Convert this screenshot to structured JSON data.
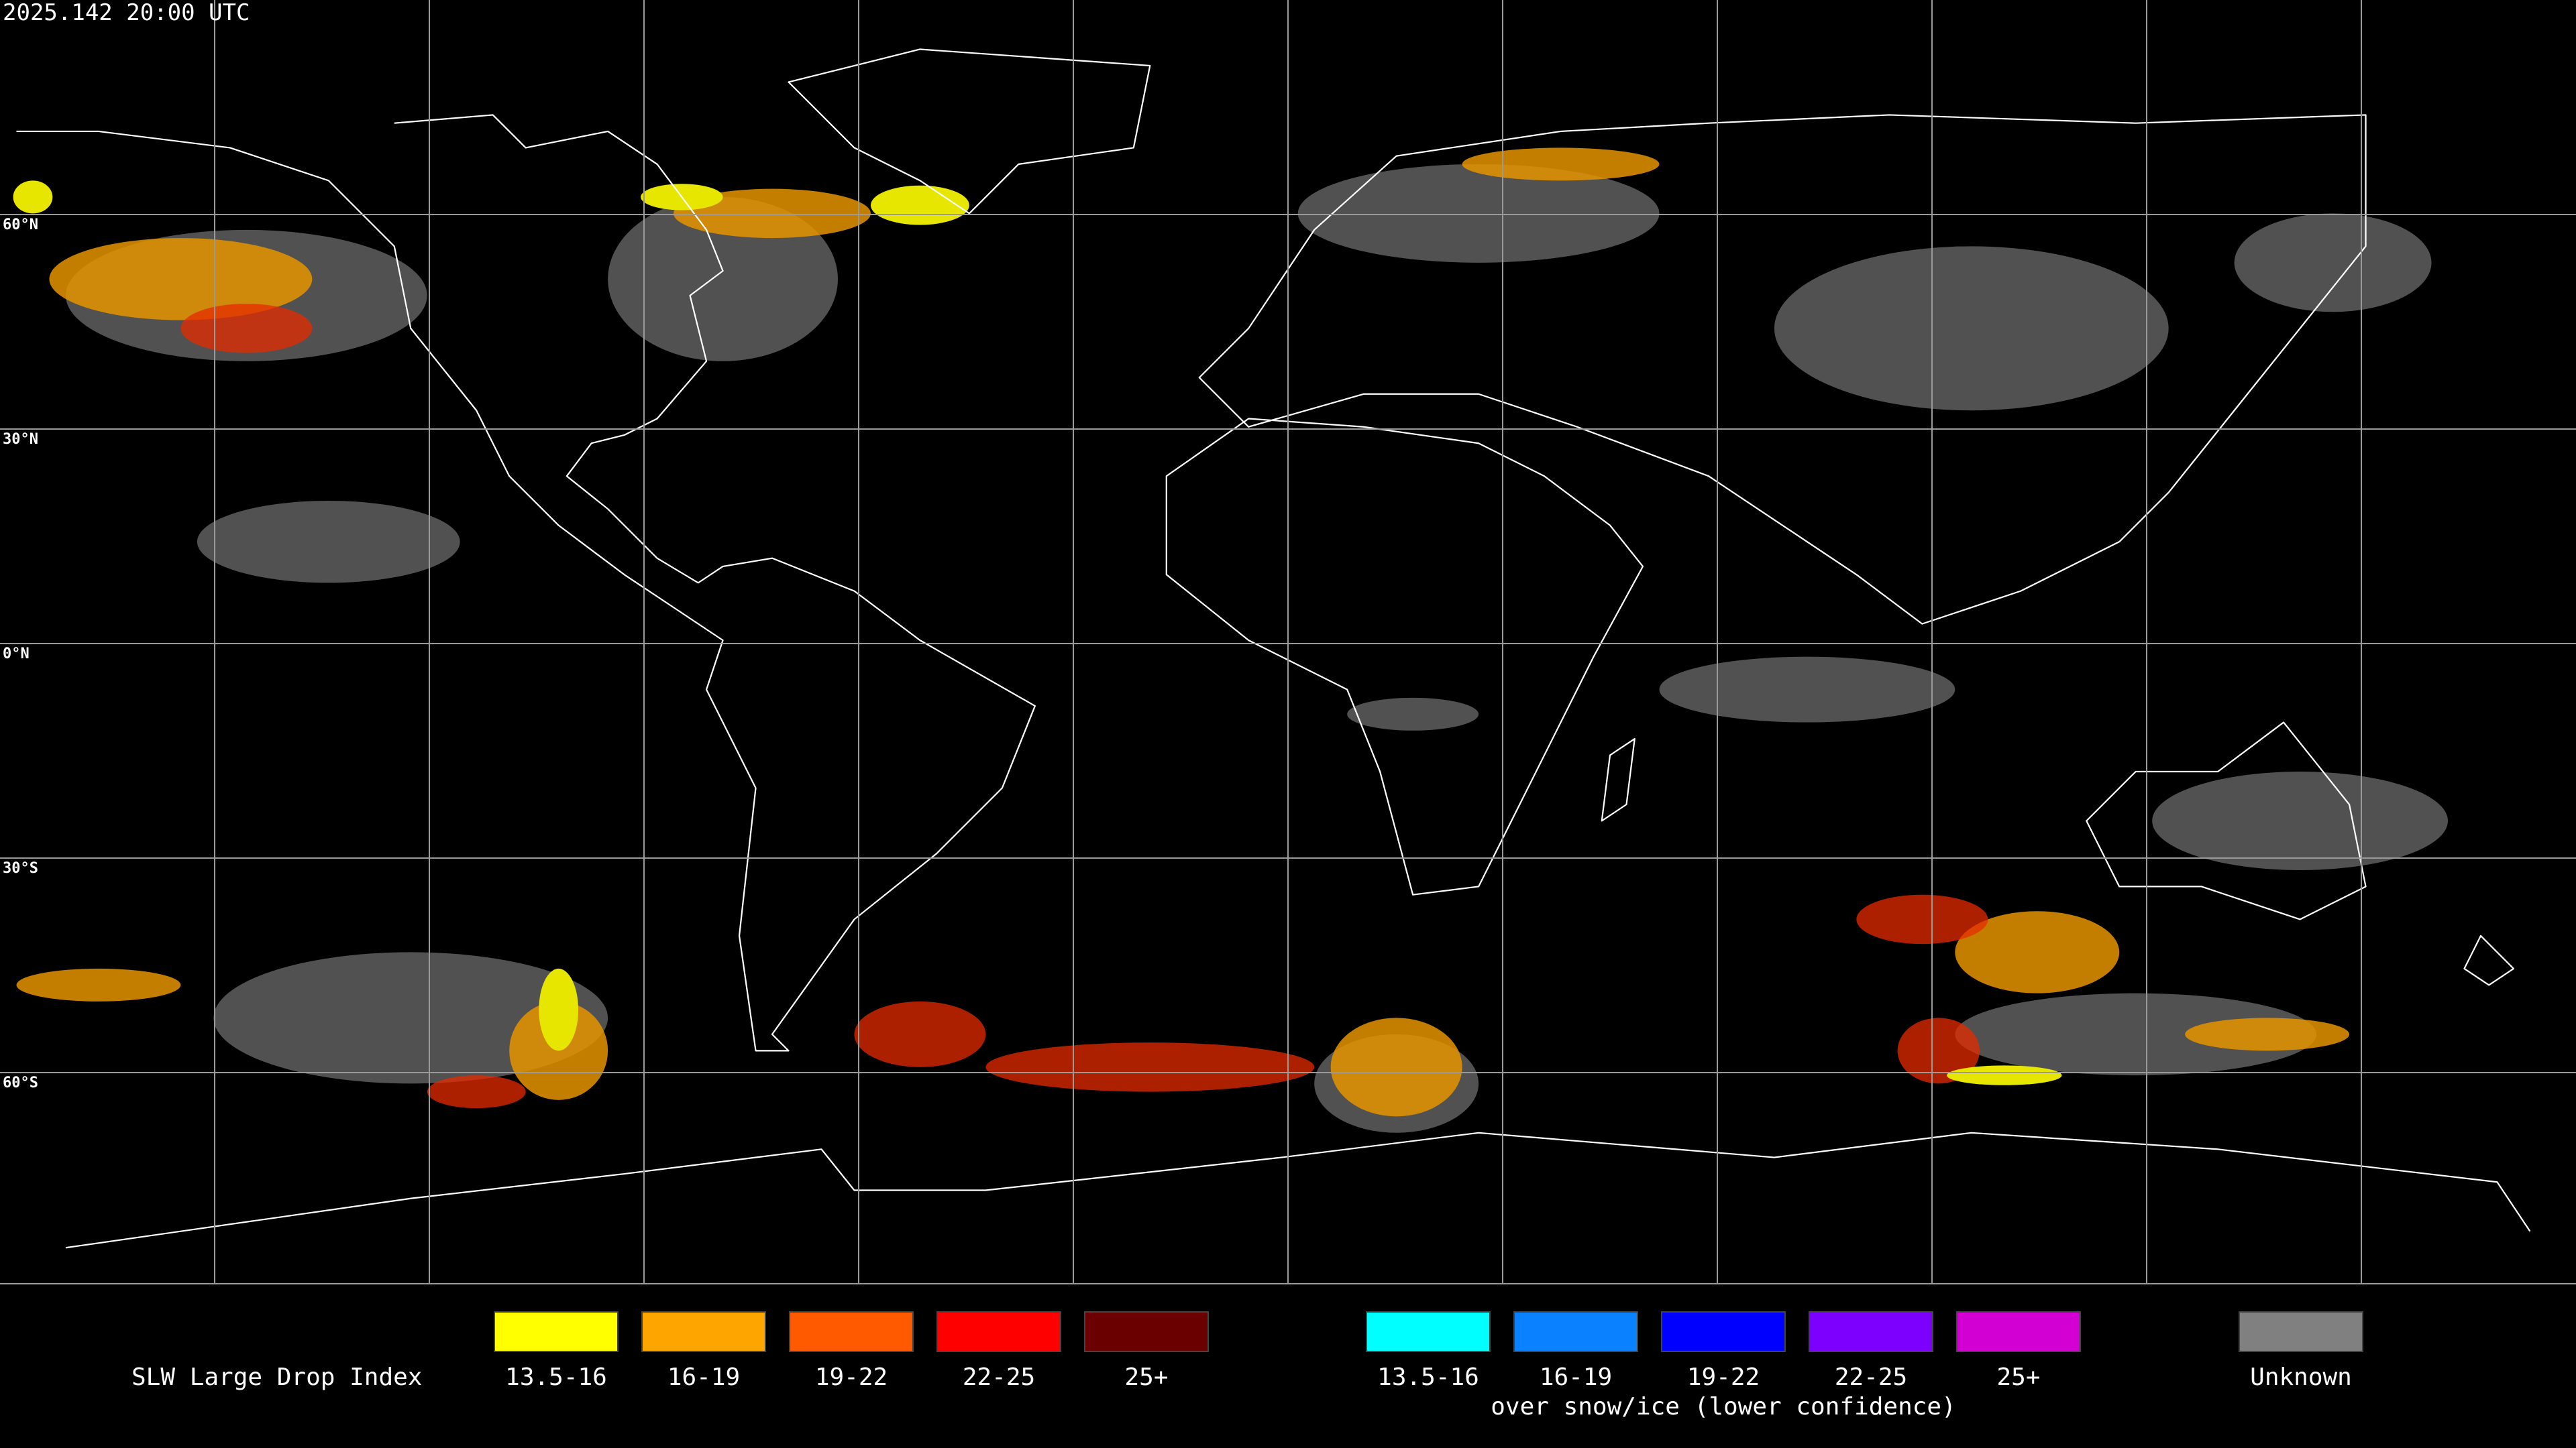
{
  "header": {
    "timestamp": "2025.142 20:00 UTC"
  },
  "lat_labels": [
    "60°N",
    "30°N",
    "0°N",
    "30°S",
    "60°S"
  ],
  "legend": {
    "title": "SLW Large Drop Index",
    "items": [
      {
        "label": "13.5-16",
        "color": "#ffff00"
      },
      {
        "label": "16-19",
        "color": "#ffa500"
      },
      {
        "label": "19-22",
        "color": "#ff5a00"
      },
      {
        "label": "22-25",
        "color": "#ff0000"
      },
      {
        "label": "25+",
        "color": "#6b0000"
      }
    ],
    "snow_items": [
      {
        "label": "13.5-16",
        "color": "#00ffff"
      },
      {
        "label": "16-19",
        "color": "#0a82ff"
      },
      {
        "label": "19-22",
        "color": "#0000ff"
      },
      {
        "label": "22-25",
        "color": "#7d00ff"
      },
      {
        "label": "25+",
        "color": "#d200d2"
      }
    ],
    "snow_caption": "over snow/ice (lower confidence)",
    "unknown": {
      "label": "Unknown",
      "color": "#808080"
    }
  }
}
